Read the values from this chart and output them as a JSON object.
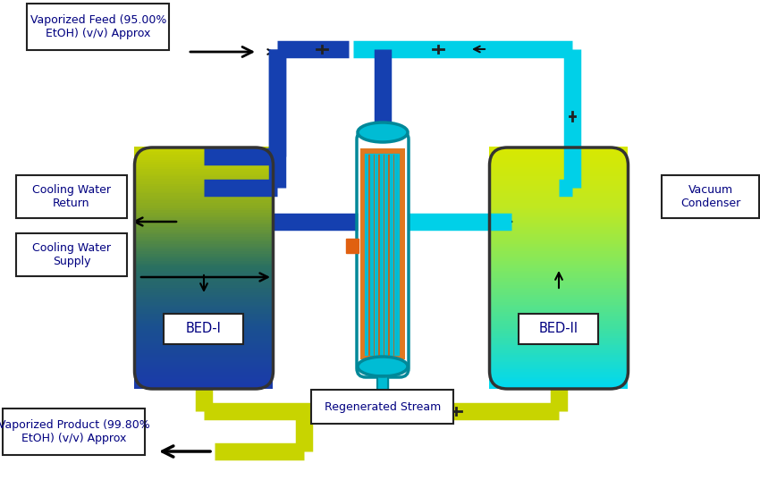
{
  "bg_color": "#ffffff",
  "bed1_label": "BED-I",
  "bed2_label": "BED-II",
  "feed_label": "Vaporized Feed (95.00%\nEtOH) (v/v) Approx",
  "product_label": "Vaporized Product (99.80%\nEtOH) (v/v) Approx",
  "cooling_return_label": "Cooling Water\nReturn",
  "cooling_supply_label": "Cooling Water\nSupply",
  "vacuum_label": "Vacuum\nCondenser",
  "regen_label": "Regenerated Stream",
  "pipe_blue": "#1540b0",
  "pipe_cyan": "#00d0e8",
  "pipe_yellow": "#c8d400",
  "pipe_orange": "#e06010",
  "hx_cyan": "#00bcd4",
  "hx_orange": "#e07820",
  "arrow_color": "#000000",
  "bed1_top_color": "#1a3aaa",
  "bed1_mid_color": "#2a6888",
  "bed1_bot_color": "#c8d400",
  "bed2_top_color": "#00d8f0",
  "bed2_mid_color": "#50d878",
  "bed2_bot_color": "#d8e800",
  "text_color": "#000080"
}
